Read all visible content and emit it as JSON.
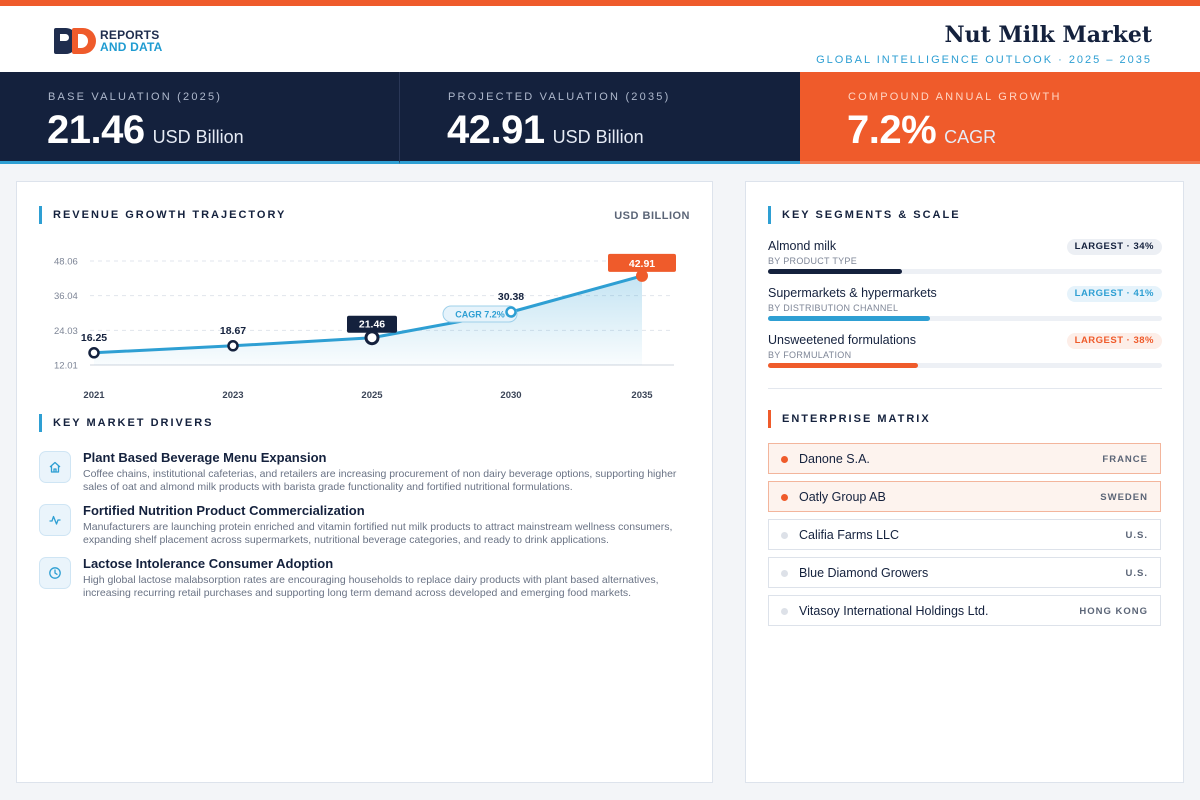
{
  "header": {
    "logo_line1": "REPORTS",
    "logo_line2": "AND DATA",
    "title": "Nut Milk Market",
    "subtitle": "GLOBAL INTELLIGENCE OUTLOOK  ·  2025 – 2035"
  },
  "kpis": [
    {
      "label": "BASE VALUATION (2025)",
      "value": "21.46",
      "unit": "USD Billion"
    },
    {
      "label": "PROJECTED VALUATION (2035)",
      "value": "42.91",
      "unit": "USD Billion"
    },
    {
      "label": "COMPOUND ANNUAL GROWTH",
      "value": "7.2%",
      "unit": "CAGR"
    }
  ],
  "chart_section": {
    "title": "REVENUE GROWTH TRAJECTORY",
    "unit": "USD BILLION"
  },
  "chart_data": {
    "type": "line",
    "title": "REVENUE GROWTH TRAJECTORY",
    "ylabel": "USD BILLION",
    "x": [
      "2021",
      "2023",
      "2025",
      "2030",
      "2035"
    ],
    "values": [
      16.25,
      18.67,
      21.46,
      30.38,
      42.91
    ],
    "point_labels": [
      "16.25",
      "18.67",
      "21.46",
      "30.38",
      "42.91"
    ],
    "yticks": [
      "48.06",
      "36.04",
      "24.03",
      "12.01"
    ],
    "ytick_values": [
      48.06,
      36.04,
      24.03,
      12.01
    ],
    "ylim": [
      12.01,
      48.06
    ],
    "annotation": "CAGR 7.2%",
    "grid": true,
    "area_fill": true,
    "colors": {
      "line": "#2e9fd3",
      "highlight": "#14213d",
      "final": "#ef5b2b"
    }
  },
  "drivers_section": {
    "title": "KEY MARKET DRIVERS"
  },
  "drivers": [
    {
      "icon": "home-icon",
      "title": "Plant Based Beverage Menu Expansion",
      "desc": "Coffee chains, institutional cafeterias, and retailers are increasing procurement of non dairy beverage options, supporting higher sales of oat and almond milk products with barista grade functionality and fortified nutritional formulations."
    },
    {
      "icon": "pulse-icon",
      "title": "Fortified Nutrition Product Commercialization",
      "desc": "Manufacturers are launching protein enriched and vitamin fortified nut milk products to attract mainstream wellness consumers, expanding shelf placement across supermarkets, nutritional beverage categories, and ready to drink applications."
    },
    {
      "icon": "clock-icon",
      "title": "Lactose Intolerance Consumer Adoption",
      "desc": "High global lactose malabsorption rates are encouraging households to replace dairy products with plant based alternatives, increasing recurring retail purchases and supporting long term demand across developed and emerging food markets."
    }
  ],
  "segments_section": {
    "title": "KEY SEGMENTS & SCALE"
  },
  "segments": [
    {
      "name": "Almond milk",
      "sub": "BY PRODUCT TYPE",
      "badge": "LARGEST · 34%",
      "share": 34,
      "color": "#14213d",
      "badge_bg": "#eceff4",
      "badge_fg": "#14213d"
    },
    {
      "name": "Supermarkets & hypermarkets",
      "sub": "BY DISTRIBUTION CHANNEL",
      "badge": "LARGEST · 41%",
      "share": 41,
      "color": "#2e9fd3",
      "badge_bg": "#e6f3fb",
      "badge_fg": "#2e9fd3"
    },
    {
      "name": "Unsweetened formulations",
      "sub": "BY FORMULATION",
      "badge": "LARGEST · 38%",
      "share": 38,
      "color": "#ef5b2b",
      "badge_bg": "#fdeee8",
      "badge_fg": "#ef5b2b"
    }
  ],
  "matrix_section": {
    "title": "ENTERPRISE MATRIX"
  },
  "companies": [
    {
      "name": "Danone S.A.",
      "country": "FRANCE",
      "highlight": true
    },
    {
      "name": "Oatly Group AB",
      "country": "SWEDEN",
      "highlight": true
    },
    {
      "name": "Califia Farms LLC",
      "country": "U.S.",
      "highlight": false
    },
    {
      "name": "Blue Diamond Growers",
      "country": "U.S.",
      "highlight": false
    },
    {
      "name": "Vitasoy International Holdings Ltd.",
      "country": "HONG KONG",
      "highlight": false
    }
  ]
}
